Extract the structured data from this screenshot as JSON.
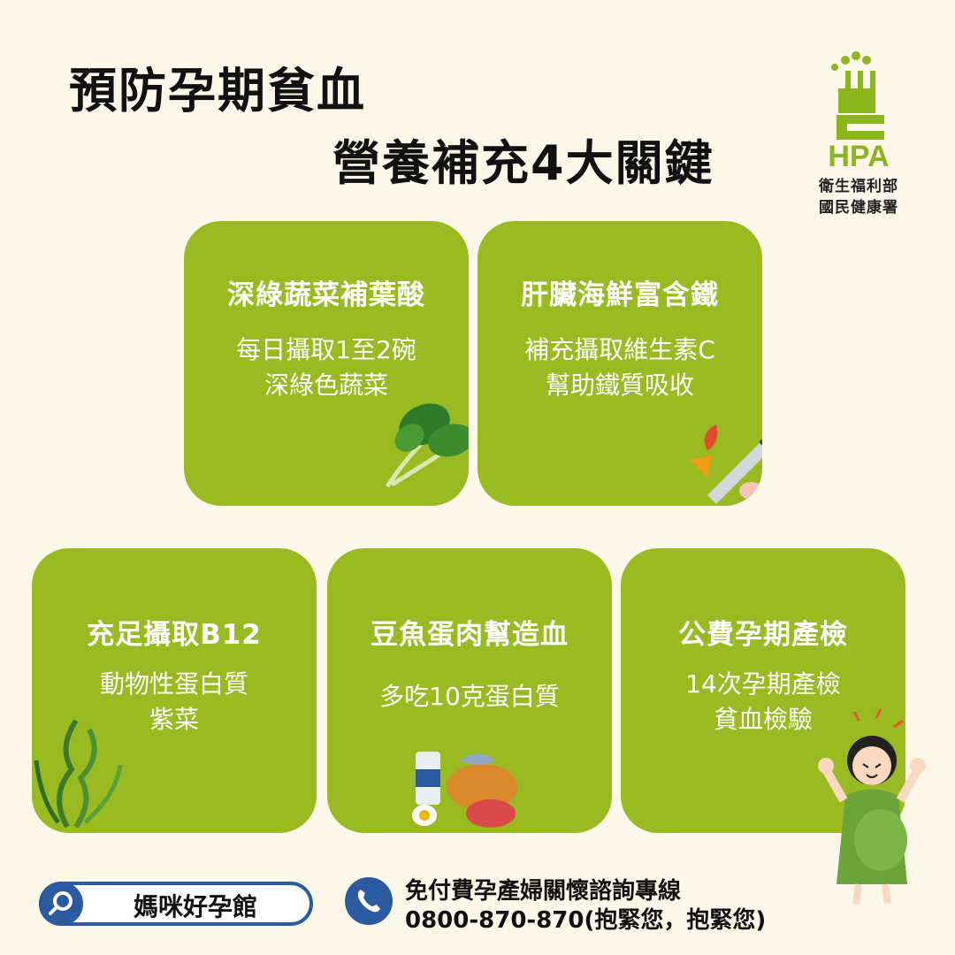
{
  "title": {
    "line1": "預防孕期貧血",
    "line2": "營養補充4大關鍵"
  },
  "logo": {
    "brand": "HPA",
    "line1": "衛生福利部",
    "line2": "國民健康署"
  },
  "cards": [
    {
      "title": "深綠蔬菜補葉酸",
      "lines": [
        "每日攝取1至2碗",
        "深綠色蔬菜"
      ],
      "icon": "spinach-icon"
    },
    {
      "title": "肝臟海鮮富含鐵",
      "lines": [
        "補充攝取維生素C",
        "幫助鐵質吸收"
      ],
      "icon": "seafood-icon"
    },
    {
      "title": "充足攝取B12",
      "lines": [
        "動物性蛋白質",
        "紫菜"
      ],
      "icon": "seaweed-icon"
    },
    {
      "title": "豆魚蛋肉幫造血",
      "lines": [
        "多吃10克蛋白質"
      ],
      "icon": "protein-food-icon"
    },
    {
      "title": "公費孕期產檢",
      "lines": [
        "14次孕期產檢",
        "貧血檢驗"
      ],
      "icon": "pregnant-woman-icon"
    }
  ],
  "footer": {
    "search_label": "媽咪好孕館",
    "hotline_title": "免付費孕產婦關懷諮詢專線",
    "hotline_number": "0800-870-870(抱緊您，抱緊您)"
  },
  "colors": {
    "background": "#fbf8ea",
    "card": "#9aba22",
    "accent_blue": "#2c5aa0",
    "logo_green": "#8cb61d"
  }
}
